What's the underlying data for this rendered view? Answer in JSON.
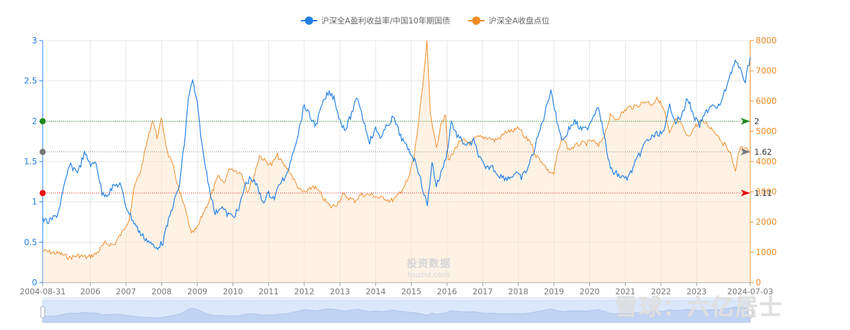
{
  "chart_data": {
    "type": "line",
    "legend": {
      "position": "top-center",
      "items": [
        {
          "name": "沪深全A盈利收益率/中国10年期国债",
          "color": "#1f7fe6"
        },
        {
          "name": "沪深全A收盘点位",
          "color": "#f08a24"
        }
      ]
    },
    "x_range": [
      "2004-08-31",
      "2024-07-03"
    ],
    "x_tick_labels": [
      "2004-08-31",
      "2006",
      "2007",
      "2008",
      "2009",
      "2010",
      "2011",
      "2012",
      "2013",
      "2014",
      "2015",
      "2016",
      "2017",
      "2018",
      "2019",
      "2020",
      "2021",
      "2022",
      "2023",
      "2024-07-03"
    ],
    "y_left": {
      "min": 0,
      "max": 3,
      "ticks": [
        "0",
        "0.5",
        "1",
        "1.5",
        "2",
        "2.5",
        "3"
      ],
      "color": "#1f7fe6"
    },
    "y_right": {
      "min": 0,
      "max": 8000,
      "ticks": [
        "0",
        "1000",
        "2000",
        "3000",
        "4000",
        "5000",
        "6000",
        "7000",
        "8000"
      ],
      "color": "#f08a24"
    },
    "grid": true,
    "series": [
      {
        "name": "沪深全A盈利收益率/中国10年期国债",
        "axis": "left",
        "color": "#1f7fe6",
        "points": [
          [
            "2004-08-31",
            0.78
          ],
          [
            "2004-11-01",
            0.75
          ],
          [
            "2005-02-01",
            0.85
          ],
          [
            "2005-04-01",
            1.15
          ],
          [
            "2005-06-01",
            1.45
          ],
          [
            "2005-09-01",
            1.38
          ],
          [
            "2005-11-01",
            1.6
          ],
          [
            "2006-01-15",
            1.45
          ],
          [
            "2006-03-01",
            1.5
          ],
          [
            "2006-05-01",
            1.1
          ],
          [
            "2006-07-01",
            1.1
          ],
          [
            "2006-09-01",
            1.2
          ],
          [
            "2006-11-01",
            1.22
          ],
          [
            "2007-01-01",
            0.95
          ],
          [
            "2007-03-01",
            0.8
          ],
          [
            "2007-06-01",
            0.6
          ],
          [
            "2007-09-01",
            0.5
          ],
          [
            "2007-11-01",
            0.42
          ],
          [
            "2008-01-15",
            0.5
          ],
          [
            "2008-03-01",
            0.72
          ],
          [
            "2008-05-01",
            0.98
          ],
          [
            "2008-07-01",
            1.2
          ],
          [
            "2008-09-01",
            1.85
          ],
          [
            "2008-10-01",
            2.3
          ],
          [
            "2008-11-15",
            2.5
          ],
          [
            "2009-01-01",
            2.2
          ],
          [
            "2009-03-01",
            1.6
          ],
          [
            "2009-05-01",
            1.2
          ],
          [
            "2009-07-01",
            0.85
          ],
          [
            "2009-09-01",
            0.95
          ],
          [
            "2009-11-01",
            0.85
          ],
          [
            "2010-01-01",
            0.82
          ],
          [
            "2010-03-01",
            0.9
          ],
          [
            "2010-05-01",
            1.2
          ],
          [
            "2010-07-01",
            1.3
          ],
          [
            "2010-09-01",
            1.2
          ],
          [
            "2010-11-01",
            1.0
          ],
          [
            "2011-01-01",
            1.1
          ],
          [
            "2011-03-01",
            1.05
          ],
          [
            "2011-05-01",
            1.25
          ],
          [
            "2011-07-01",
            1.3
          ],
          [
            "2011-09-01",
            1.6
          ],
          [
            "2011-11-01",
            1.85
          ],
          [
            "2012-01-01",
            2.2
          ],
          [
            "2012-03-01",
            2.05
          ],
          [
            "2012-05-01",
            1.95
          ],
          [
            "2012-07-01",
            2.2
          ],
          [
            "2012-09-01",
            2.35
          ],
          [
            "2012-11-01",
            2.3
          ],
          [
            "2013-01-01",
            2.0
          ],
          [
            "2013-03-01",
            1.9
          ],
          [
            "2013-05-01",
            2.1
          ],
          [
            "2013-07-01",
            2.3
          ],
          [
            "2013-09-01",
            2.0
          ],
          [
            "2013-11-01",
            1.75
          ],
          [
            "2014-01-01",
            1.9
          ],
          [
            "2014-03-01",
            1.8
          ],
          [
            "2014-05-01",
            1.95
          ],
          [
            "2014-07-01",
            2.05
          ],
          [
            "2014-09-01",
            1.85
          ],
          [
            "2014-11-01",
            1.7
          ],
          [
            "2015-01-01",
            1.6
          ],
          [
            "2015-03-01",
            1.45
          ],
          [
            "2015-05-01",
            1.15
          ],
          [
            "2015-06-15",
            0.95
          ],
          [
            "2015-08-01",
            1.5
          ],
          [
            "2015-09-15",
            1.2
          ],
          [
            "2015-11-01",
            1.35
          ],
          [
            "2016-01-01",
            1.6
          ],
          [
            "2016-02-15",
            2.0
          ],
          [
            "2016-04-01",
            1.85
          ],
          [
            "2016-06-01",
            1.75
          ],
          [
            "2016-08-01",
            1.7
          ],
          [
            "2016-10-01",
            1.75
          ],
          [
            "2016-12-01",
            1.55
          ],
          [
            "2017-02-01",
            1.4
          ],
          [
            "2017-04-01",
            1.45
          ],
          [
            "2017-06-01",
            1.35
          ],
          [
            "2017-08-01",
            1.3
          ],
          [
            "2017-10-01",
            1.3
          ],
          [
            "2017-12-01",
            1.35
          ],
          [
            "2018-02-01",
            1.3
          ],
          [
            "2018-04-01",
            1.4
          ],
          [
            "2018-06-01",
            1.6
          ],
          [
            "2018-08-01",
            1.85
          ],
          [
            "2018-10-01",
            2.1
          ],
          [
            "2018-12-01",
            2.4
          ],
          [
            "2019-02-01",
            2.0
          ],
          [
            "2019-04-01",
            1.75
          ],
          [
            "2019-06-01",
            1.9
          ],
          [
            "2019-08-01",
            2.0
          ],
          [
            "2019-10-01",
            1.9
          ],
          [
            "2019-12-01",
            1.9
          ],
          [
            "2020-02-01",
            2.05
          ],
          [
            "2020-04-01",
            2.2
          ],
          [
            "2020-06-01",
            1.8
          ],
          [
            "2020-08-01",
            1.4
          ],
          [
            "2020-10-01",
            1.35
          ],
          [
            "2020-12-01",
            1.3
          ],
          [
            "2021-02-01",
            1.3
          ],
          [
            "2021-04-01",
            1.45
          ],
          [
            "2021-06-01",
            1.6
          ],
          [
            "2021-08-01",
            1.75
          ],
          [
            "2021-10-01",
            1.8
          ],
          [
            "2021-12-01",
            1.85
          ],
          [
            "2022-02-01",
            1.85
          ],
          [
            "2022-04-01",
            2.2
          ],
          [
            "2022-06-01",
            2.0
          ],
          [
            "2022-08-01",
            2.05
          ],
          [
            "2022-10-01",
            2.3
          ],
          [
            "2022-12-01",
            2.05
          ],
          [
            "2023-02-01",
            1.95
          ],
          [
            "2023-04-01",
            2.1
          ],
          [
            "2023-06-01",
            2.2
          ],
          [
            "2023-08-01",
            2.15
          ],
          [
            "2023-10-01",
            2.3
          ],
          [
            "2023-12-01",
            2.55
          ],
          [
            "2024-02-01",
            2.75
          ],
          [
            "2024-04-01",
            2.6
          ],
          [
            "2024-05-15",
            2.5
          ],
          [
            "2024-07-03",
            2.8
          ]
        ]
      },
      {
        "name": "沪深全A收盘点位",
        "axis": "right",
        "color": "#f08a24",
        "area": true,
        "points": [
          [
            "2004-08-31",
            1050
          ],
          [
            "2004-12-01",
            1000
          ],
          [
            "2005-03-01",
            950
          ],
          [
            "2005-06-01",
            820
          ],
          [
            "2005-09-01",
            900
          ],
          [
            "2005-12-01",
            830
          ],
          [
            "2006-03-01",
            950
          ],
          [
            "2006-06-01",
            1300
          ],
          [
            "2006-09-01",
            1250
          ],
          [
            "2006-12-01",
            1700
          ],
          [
            "2007-02-01",
            2100
          ],
          [
            "2007-04-01",
            3200
          ],
          [
            "2007-06-01",
            3700
          ],
          [
            "2007-08-01",
            4600
          ],
          [
            "2007-10-01",
            5400
          ],
          [
            "2007-11-15",
            4800
          ],
          [
            "2008-01-01",
            5400
          ],
          [
            "2008-03-01",
            4300
          ],
          [
            "2008-05-01",
            3800
          ],
          [
            "2008-07-01",
            3000
          ],
          [
            "2008-09-01",
            2400
          ],
          [
            "2008-11-01",
            1600
          ],
          [
            "2009-01-01",
            1800
          ],
          [
            "2009-03-01",
            2300
          ],
          [
            "2009-05-01",
            2700
          ],
          [
            "2009-08-01",
            3500
          ],
          [
            "2009-10-01",
            3300
          ],
          [
            "2009-12-01",
            3800
          ],
          [
            "2010-02-01",
            3700
          ],
          [
            "2010-04-01",
            3600
          ],
          [
            "2010-06-01",
            3000
          ],
          [
            "2010-08-01",
            3500
          ],
          [
            "2010-10-01",
            4200
          ],
          [
            "2010-12-01",
            4000
          ],
          [
            "2011-02-01",
            3900
          ],
          [
            "2011-04-01",
            4200
          ],
          [
            "2011-06-01",
            3900
          ],
          [
            "2011-08-01",
            3700
          ],
          [
            "2011-10-01",
            3300
          ],
          [
            "2011-12-01",
            3000
          ],
          [
            "2012-02-01",
            3000
          ],
          [
            "2012-04-01",
            3200
          ],
          [
            "2012-06-01",
            3000
          ],
          [
            "2012-08-01",
            2700
          ],
          [
            "2012-10-01",
            2500
          ],
          [
            "2012-12-01",
            2600
          ],
          [
            "2013-02-01",
            2900
          ],
          [
            "2013-04-01",
            2800
          ],
          [
            "2013-06-01",
            2700
          ],
          [
            "2013-08-01",
            2900
          ],
          [
            "2013-10-01",
            2900
          ],
          [
            "2013-12-01",
            2900
          ],
          [
            "2014-02-01",
            2800
          ],
          [
            "2014-04-01",
            2800
          ],
          [
            "2014-06-01",
            2700
          ],
          [
            "2014-08-01",
            2800
          ],
          [
            "2014-10-01",
            3100
          ],
          [
            "2014-12-01",
            3400
          ],
          [
            "2015-02-01",
            4200
          ],
          [
            "2015-04-01",
            5700
          ],
          [
            "2015-05-15",
            7000
          ],
          [
            "2015-06-10",
            8000
          ],
          [
            "2015-07-15",
            5600
          ],
          [
            "2015-08-20",
            5000
          ],
          [
            "2015-09-15",
            4400
          ],
          [
            "2015-11-01",
            5300
          ],
          [
            "2015-12-20",
            5500
          ],
          [
            "2016-01-15",
            4000
          ],
          [
            "2016-03-01",
            4300
          ],
          [
            "2016-05-01",
            4600
          ],
          [
            "2016-07-01",
            4700
          ],
          [
            "2016-09-01",
            4600
          ],
          [
            "2016-11-01",
            4800
          ],
          [
            "2017-01-01",
            4800
          ],
          [
            "2017-03-01",
            4800
          ],
          [
            "2017-05-01",
            4700
          ],
          [
            "2017-07-01",
            4800
          ],
          [
            "2017-09-01",
            5000
          ],
          [
            "2017-11-01",
            5000
          ],
          [
            "2018-01-15",
            5100
          ],
          [
            "2018-03-01",
            4800
          ],
          [
            "2018-05-01",
            4700
          ],
          [
            "2018-07-01",
            4200
          ],
          [
            "2018-09-01",
            4000
          ],
          [
            "2018-11-01",
            3700
          ],
          [
            "2018-12-31",
            3600
          ],
          [
            "2019-02-01",
            4200
          ],
          [
            "2019-04-01",
            4800
          ],
          [
            "2019-06-01",
            4400
          ],
          [
            "2019-08-01",
            4500
          ],
          [
            "2019-10-01",
            4600
          ],
          [
            "2019-12-01",
            4600
          ],
          [
            "2020-02-01",
            4700
          ],
          [
            "2020-04-01",
            4500
          ],
          [
            "2020-06-01",
            4900
          ],
          [
            "2020-08-01",
            5500
          ],
          [
            "2020-10-01",
            5400
          ],
          [
            "2020-12-01",
            5600
          ],
          [
            "2021-02-01",
            5800
          ],
          [
            "2021-04-01",
            5800
          ],
          [
            "2021-06-01",
            5900
          ],
          [
            "2021-08-01",
            6000
          ],
          [
            "2021-10-01",
            5900
          ],
          [
            "2021-12-01",
            6100
          ],
          [
            "2022-02-01",
            5700
          ],
          [
            "2022-04-01",
            4900
          ],
          [
            "2022-06-01",
            5400
          ],
          [
            "2022-08-01",
            5200
          ],
          [
            "2022-10-01",
            4800
          ],
          [
            "2022-12-01",
            5100
          ],
          [
            "2023-02-01",
            5300
          ],
          [
            "2023-04-01",
            5300
          ],
          [
            "2023-06-01",
            5100
          ],
          [
            "2023-08-01",
            4900
          ],
          [
            "2023-10-01",
            4600
          ],
          [
            "2023-12-01",
            4400
          ],
          [
            "2024-02-01",
            3700
          ],
          [
            "2024-03-15",
            4400
          ],
          [
            "2024-05-15",
            4500
          ],
          [
            "2024-07-03",
            4300
          ]
        ]
      }
    ],
    "reference_lines": [
      {
        "value": 2,
        "label": "2",
        "color": "#1a8a1a"
      },
      {
        "value": 1.62,
        "label": "1.62",
        "color": "#777777"
      },
      {
        "value": 1.11,
        "label": "1.11",
        "color": "#e81010"
      }
    ]
  },
  "center_watermark": {
    "line1": "投资数据",
    "line2": "touzid.com"
  },
  "watermark": "雪球：六亿居士"
}
